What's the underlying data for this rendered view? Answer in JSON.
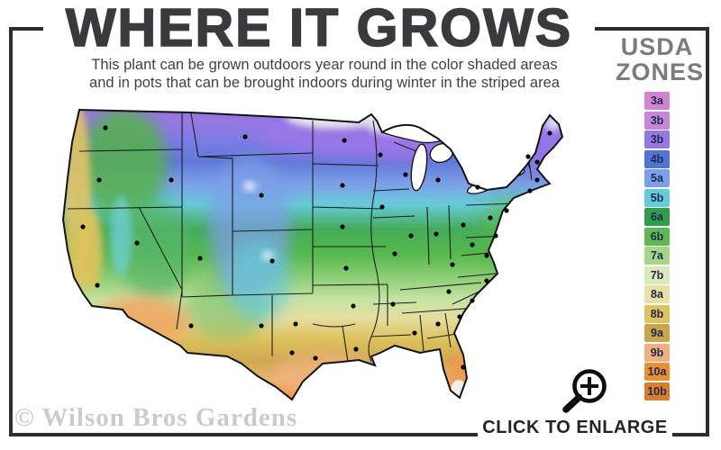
{
  "header": {
    "title": "WHERE IT GROWS",
    "subtitle_line1": "This plant can be grown outdoors year round in the color shaded areas",
    "subtitle_line2": "and in pots that can be brought indoors during winter in the striped area"
  },
  "legend": {
    "title_line1": "USDA",
    "title_line2": "ZONES",
    "zones": [
      {
        "label": "3a",
        "color": "#d283d2"
      },
      {
        "label": "3b",
        "color": "#c687d6"
      },
      {
        "label": "3b",
        "color": "#9678e0"
      },
      {
        "label": "4b",
        "color": "#4f74d2"
      },
      {
        "label": "5a",
        "color": "#7d9fe8"
      },
      {
        "label": "5b",
        "color": "#66cbd8"
      },
      {
        "label": "6a",
        "color": "#2f9e4c"
      },
      {
        "label": "6b",
        "color": "#5cb84f"
      },
      {
        "label": "7a",
        "color": "#a5d687"
      },
      {
        "label": "7b",
        "color": "#d9e9b8"
      },
      {
        "label": "8a",
        "color": "#e9e0a4"
      },
      {
        "label": "8b",
        "color": "#ddc25e"
      },
      {
        "label": "9a",
        "color": "#c9a54e"
      },
      {
        "label": "9b",
        "color": "#f0b080"
      },
      {
        "label": "10a",
        "color": "#e98f33"
      },
      {
        "label": "10b",
        "color": "#db7c2a"
      }
    ]
  },
  "map": {
    "description": "USDA hardiness zone shaded map of the contiguous United States with state borders and city dots",
    "dot_color": "#0a0a0a",
    "border_color": "#141414"
  },
  "footer": {
    "watermark": "© Wilson Bros Gardens",
    "enlarge_label": "CLICK TO ENLARGE"
  }
}
